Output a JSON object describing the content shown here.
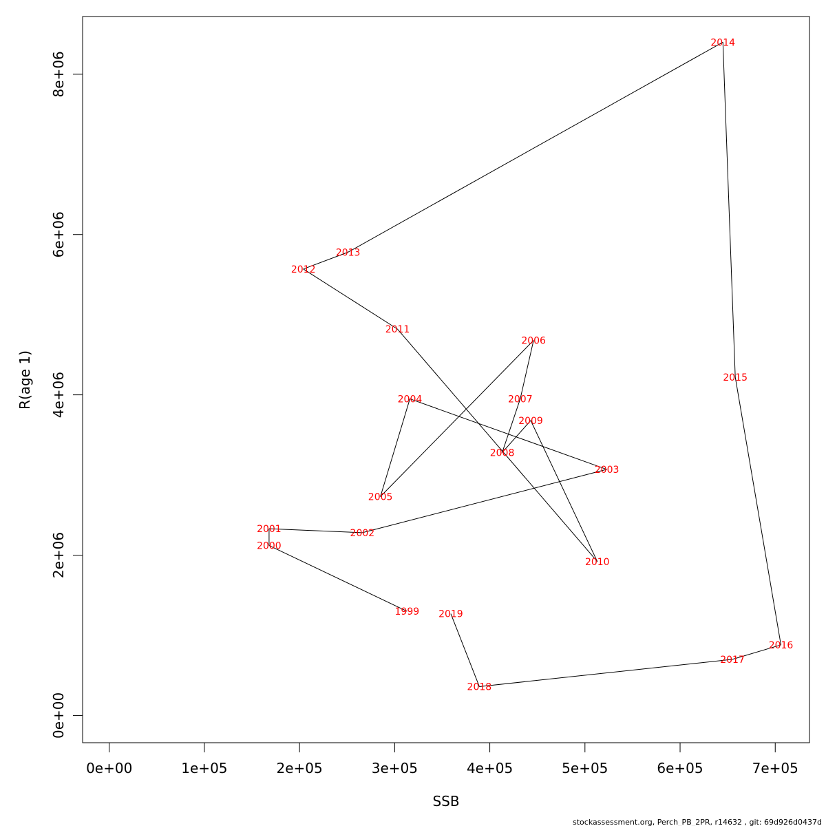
{
  "chart_data": {
    "type": "line",
    "xlabel": "SSB",
    "ylabel": "R(age 1)",
    "xlim": [
      -28000,
      736000
    ],
    "ylim": [
      -340000,
      8720000
    ],
    "x_ticks": [
      {
        "value": 0,
        "label": "0e+00"
      },
      {
        "value": 100000,
        "label": "1e+05"
      },
      {
        "value": 200000,
        "label": "2e+05"
      },
      {
        "value": 300000,
        "label": "3e+05"
      },
      {
        "value": 400000,
        "label": "4e+05"
      },
      {
        "value": 500000,
        "label": "5e+05"
      },
      {
        "value": 600000,
        "label": "6e+05"
      },
      {
        "value": 700000,
        "label": "7e+05"
      }
    ],
    "y_ticks": [
      {
        "value": 0,
        "label": "0e+00"
      },
      {
        "value": 2000000,
        "label": "2e+06"
      },
      {
        "value": 4000000,
        "label": "4e+06"
      },
      {
        "value": 6000000,
        "label": "6e+06"
      },
      {
        "value": 8000000,
        "label": "8e+06"
      }
    ],
    "points": [
      {
        "year": "1999",
        "x": 313000,
        "y": 1300000
      },
      {
        "year": "2000",
        "x": 168000,
        "y": 2120000
      },
      {
        "year": "2001",
        "x": 168000,
        "y": 2330000
      },
      {
        "year": "2002",
        "x": 266000,
        "y": 2280000
      },
      {
        "year": "2003",
        "x": 523000,
        "y": 3070000
      },
      {
        "year": "2004",
        "x": 316000,
        "y": 3950000
      },
      {
        "year": "2005",
        "x": 285000,
        "y": 2730000
      },
      {
        "year": "2006",
        "x": 446000,
        "y": 4680000
      },
      {
        "year": "2007",
        "x": 432000,
        "y": 3950000
      },
      {
        "year": "2008",
        "x": 413000,
        "y": 3280000
      },
      {
        "year": "2009",
        "x": 443000,
        "y": 3680000
      },
      {
        "year": "2010",
        "x": 513000,
        "y": 1920000
      },
      {
        "year": "2011",
        "x": 303000,
        "y": 4820000
      },
      {
        "year": "2012",
        "x": 204000,
        "y": 5570000
      },
      {
        "year": "2013",
        "x": 251000,
        "y": 5780000
      },
      {
        "year": "2014",
        "x": 645000,
        "y": 8400000
      },
      {
        "year": "2015",
        "x": 658000,
        "y": 4220000
      },
      {
        "year": "2016",
        "x": 706000,
        "y": 880000
      },
      {
        "year": "2017",
        "x": 655000,
        "y": 700000
      },
      {
        "year": "2018",
        "x": 389000,
        "y": 360000
      },
      {
        "year": "2019",
        "x": 359000,
        "y": 1270000
      }
    ]
  },
  "footer": "stockassessment.org, Perch_PB_2PR, r14632 , git: 69d926d0437d"
}
